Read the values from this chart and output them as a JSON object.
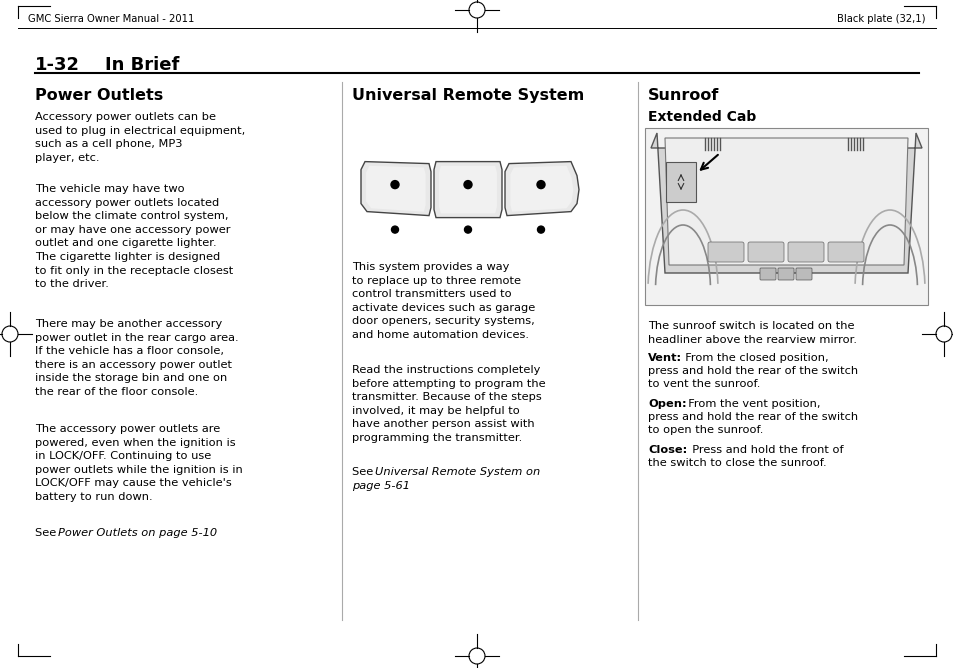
{
  "bg_color": "#ffffff",
  "header_left": "GMC Sierra Owner Manual - 2011",
  "header_right": "Black plate (32,1)",
  "col1_title": "Power Outlets",
  "col1_p1": "Accessory power outlets can be\nused to plug in electrical equipment,\nsuch as a cell phone, MP3\nplayer, etc.",
  "col1_p2": "The vehicle may have two\naccessory power outlets located\nbelow the climate control system,\nor may have one accessory power\noutlet and one cigarette lighter.\nThe cigarette lighter is designed\nto fit only in the receptacle closest\nto the driver.",
  "col1_p3": "There may be another accessory\npower outlet in the rear cargo area.\nIf the vehicle has a floor console,\nthere is an accessory power outlet\ninside the storage bin and one on\nthe rear of the floor console.",
  "col1_p4": "The accessory power outlets are\npowered, even when the ignition is\nin LOCK/OFF. Continuing to use\npower outlets while the ignition is in\nLOCK/OFF may cause the vehicle's\nbattery to run down.",
  "col2_title": "Universal Remote System",
  "col2_p1": "This system provides a way\nto replace up to three remote\ncontrol transmitters used to\nactivate devices such as garage\ndoor openers, security systems,\nand home automation devices.",
  "col2_p2": "Read the instructions completely\nbefore attempting to program the\ntransmitter. Because of the steps\ninvolved, it may be helpful to\nhave another person assist with\nprogramming the transmitter.",
  "col3_title": "Sunroof",
  "col3_subtitle": "Extended Cab",
  "col3_p1": "The sunroof switch is located on the\nheadliner above the rearview mirror.",
  "col3_vent": "From the closed position,\npress and hold the rear of the switch\nto vent the sunroof.",
  "col3_open": "From the vent position,\npress and hold the rear of the switch\nto open the sunroof.",
  "col3_close": "Press and hold the front of\nthe switch to close the sunroof."
}
